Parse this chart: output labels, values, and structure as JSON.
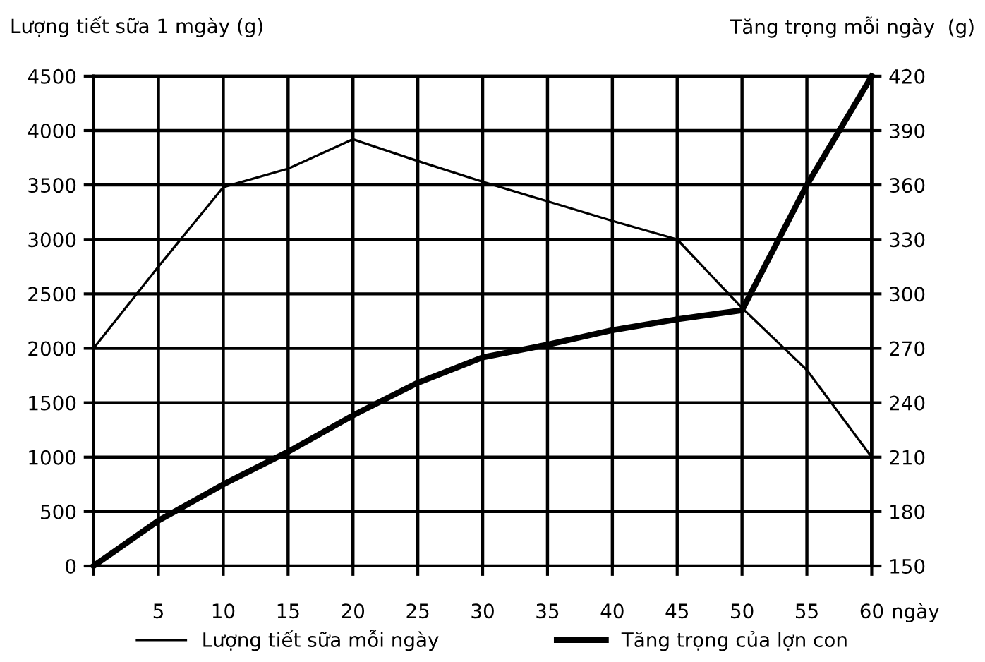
{
  "chart_data": {
    "type": "line",
    "ylabel": "Lượng tiết sữa 1 mgày (g)",
    "y2label": "Tăng trọng mỗi ngày  (g)",
    "xlabel": "ngày",
    "x": [
      0,
      5,
      10,
      15,
      20,
      25,
      30,
      35,
      40,
      45,
      50,
      55,
      60
    ],
    "series": [
      {
        "name": "Lượng tiết sữa mỗi ngày",
        "color": "#000000",
        "values": [
          2000,
          2750,
          3480,
          3650,
          3920,
          3720,
          3530,
          3350,
          3170,
          3000,
          2370,
          1800,
          1000
        ]
      },
      {
        "name": "Tăng trọng của lợn con",
        "color": "#000000",
        "axis": "y2",
        "values": [
          150,
          175,
          195,
          213,
          233,
          251,
          265,
          272,
          280,
          286,
          291,
          360,
          420
        ]
      }
    ],
    "xlim": [
      0,
      60
    ],
    "xticks": [
      {
        "value": 0,
        "label": null
      },
      5,
      10,
      15,
      20,
      25,
      30,
      35,
      40,
      45,
      50,
      55,
      60
    ],
    "ylim": [
      0,
      4500
    ],
    "yticks": [
      0,
      500,
      1000,
      1500,
      2000,
      2500,
      3000,
      3500,
      4000,
      4500
    ],
    "y2lim": [
      150,
      420
    ],
    "y2ticks": [
      150,
      180,
      210,
      240,
      270,
      300,
      330,
      360,
      390,
      420
    ],
    "grid": true,
    "legend": "bottom",
    "marker": "none",
    "line_style": "solid"
  }
}
